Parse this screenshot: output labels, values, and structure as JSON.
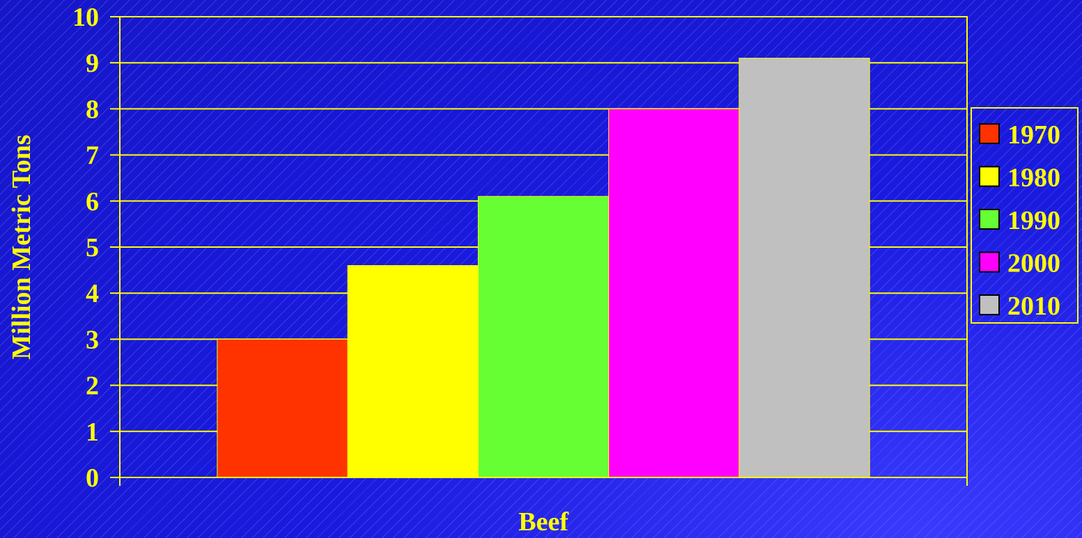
{
  "chart_data": {
    "type": "bar",
    "categories": [
      "Beef"
    ],
    "series": [
      {
        "name": "1970",
        "values": [
          3.0
        ],
        "color": "#ff3300"
      },
      {
        "name": "1980",
        "values": [
          4.6
        ],
        "color": "#ffff00"
      },
      {
        "name": "1990",
        "values": [
          6.1
        ],
        "color": "#66ff33"
      },
      {
        "name": "2000",
        "values": [
          8.0
        ],
        "color": "#ff00ff"
      },
      {
        "name": "2010",
        "values": [
          9.1
        ],
        "color": "#c0c0c0"
      }
    ],
    "xlabel": "Beef",
    "ylabel": "Million Metric Tons",
    "ylim": [
      0,
      10
    ],
    "yticks": [
      0,
      1,
      2,
      3,
      4,
      5,
      6,
      7,
      8,
      9,
      10
    ],
    "grid": true,
    "legend_position": "right",
    "colors": {
      "background": "#1a1adf",
      "axis": "#ffff00",
      "text": "#ffff00"
    }
  }
}
